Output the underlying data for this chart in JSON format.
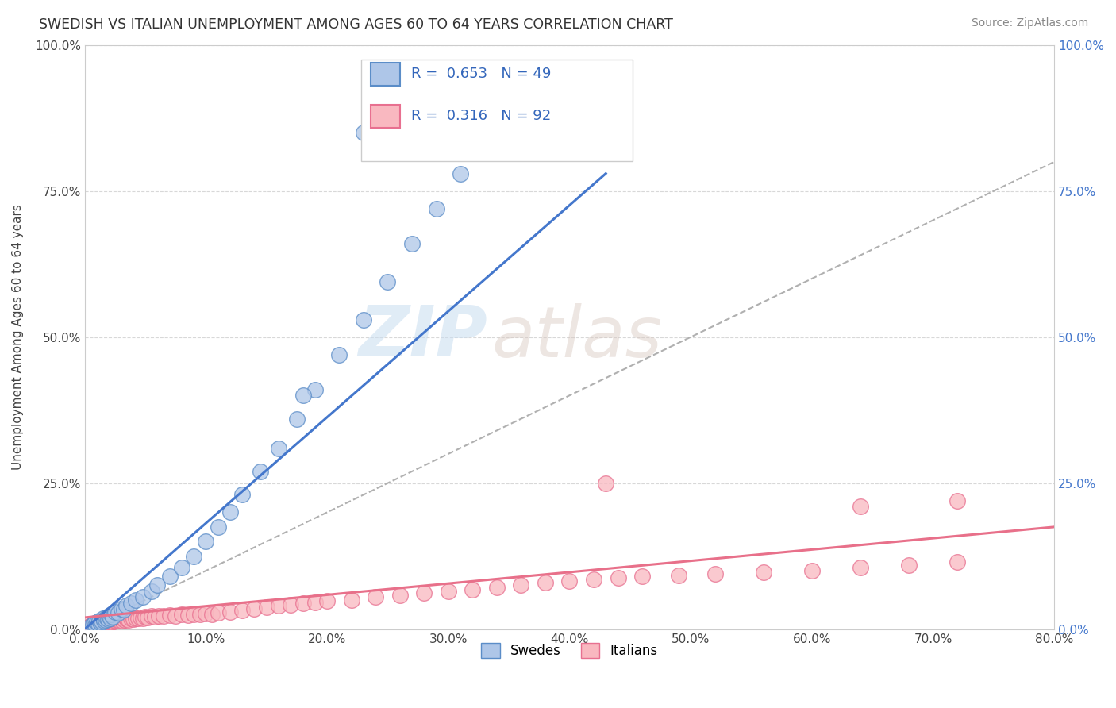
{
  "title": "SWEDISH VS ITALIAN UNEMPLOYMENT AMONG AGES 60 TO 64 YEARS CORRELATION CHART",
  "source": "Source: ZipAtlas.com",
  "ylabel": "Unemployment Among Ages 60 to 64 years",
  "xlim": [
    0.0,
    0.8
  ],
  "ylim": [
    0.0,
    1.0
  ],
  "xticks": [
    0.0,
    0.1,
    0.2,
    0.3,
    0.4,
    0.5,
    0.6,
    0.7,
    0.8
  ],
  "xticklabels": [
    "0.0%",
    "10.0%",
    "20.0%",
    "30.0%",
    "40.0%",
    "50.0%",
    "60.0%",
    "70.0%",
    "80.0%"
  ],
  "yticks": [
    0.0,
    0.25,
    0.5,
    0.75,
    1.0
  ],
  "yticklabels": [
    "0.0%",
    "25.0%",
    "50.0%",
    "75.0%",
    "100.0%"
  ],
  "swedes_color": "#aec6e8",
  "swedes_edge_color": "#5b8dc8",
  "italians_color": "#f9b8c0",
  "italians_edge_color": "#e87090",
  "swedes_R": 0.653,
  "swedes_N": 49,
  "italians_R": 0.316,
  "italians_N": 92,
  "legend_label_swedes": "Swedes",
  "legend_label_italians": "Italians",
  "watermark_zip": "ZIP",
  "watermark_atlas": "atlas",
  "regression_color_blue": "#4477cc",
  "regression_color_pink": "#e8708a",
  "grid_color": "#d8d8d8",
  "background_color": "#ffffff",
  "swedes_x": [
    0.005,
    0.007,
    0.008,
    0.009,
    0.01,
    0.011,
    0.012,
    0.013,
    0.014,
    0.015,
    0.016,
    0.017,
    0.018,
    0.019,
    0.02,
    0.021,
    0.022,
    0.023,
    0.025,
    0.028,
    0.03,
    0.032,
    0.034,
    0.038,
    0.042,
    0.048,
    0.055,
    0.06,
    0.07,
    0.08,
    0.09,
    0.1,
    0.11,
    0.12,
    0.13,
    0.145,
    0.16,
    0.175,
    0.19,
    0.21,
    0.23,
    0.25,
    0.27,
    0.29,
    0.31,
    0.33,
    0.35,
    0.23,
    0.18
  ],
  "swedes_y": [
    0.005,
    0.008,
    0.01,
    0.007,
    0.012,
    0.009,
    0.015,
    0.011,
    0.013,
    0.018,
    0.014,
    0.016,
    0.02,
    0.017,
    0.022,
    0.019,
    0.025,
    0.021,
    0.03,
    0.028,
    0.035,
    0.033,
    0.04,
    0.045,
    0.05,
    0.055,
    0.065,
    0.075,
    0.09,
    0.105,
    0.125,
    0.15,
    0.175,
    0.2,
    0.23,
    0.27,
    0.31,
    0.36,
    0.41,
    0.47,
    0.53,
    0.595,
    0.66,
    0.72,
    0.78,
    0.83,
    0.875,
    0.85,
    0.4
  ],
  "italians_x": [
    0.004,
    0.005,
    0.006,
    0.007,
    0.008,
    0.008,
    0.009,
    0.01,
    0.01,
    0.011,
    0.012,
    0.012,
    0.013,
    0.014,
    0.015,
    0.015,
    0.016,
    0.017,
    0.018,
    0.018,
    0.019,
    0.02,
    0.02,
    0.021,
    0.022,
    0.023,
    0.024,
    0.025,
    0.026,
    0.027,
    0.028,
    0.029,
    0.03,
    0.031,
    0.032,
    0.033,
    0.034,
    0.035,
    0.036,
    0.038,
    0.04,
    0.042,
    0.044,
    0.046,
    0.048,
    0.05,
    0.052,
    0.055,
    0.058,
    0.061,
    0.065,
    0.07,
    0.075,
    0.08,
    0.085,
    0.09,
    0.095,
    0.1,
    0.105,
    0.11,
    0.12,
    0.13,
    0.14,
    0.15,
    0.16,
    0.17,
    0.18,
    0.19,
    0.2,
    0.22,
    0.24,
    0.26,
    0.28,
    0.3,
    0.32,
    0.34,
    0.36,
    0.38,
    0.4,
    0.42,
    0.44,
    0.46,
    0.49,
    0.52,
    0.56,
    0.6,
    0.64,
    0.68,
    0.72,
    0.43,
    0.64,
    0.72
  ],
  "italians_y": [
    0.005,
    0.006,
    0.007,
    0.008,
    0.005,
    0.009,
    0.007,
    0.01,
    0.006,
    0.008,
    0.009,
    0.011,
    0.008,
    0.01,
    0.009,
    0.012,
    0.01,
    0.011,
    0.01,
    0.013,
    0.011,
    0.012,
    0.014,
    0.013,
    0.012,
    0.014,
    0.013,
    0.015,
    0.014,
    0.016,
    0.015,
    0.014,
    0.016,
    0.015,
    0.017,
    0.016,
    0.018,
    0.017,
    0.016,
    0.018,
    0.017,
    0.019,
    0.018,
    0.02,
    0.019,
    0.021,
    0.02,
    0.022,
    0.021,
    0.023,
    0.022,
    0.024,
    0.023,
    0.025,
    0.024,
    0.026,
    0.025,
    0.027,
    0.026,
    0.028,
    0.03,
    0.032,
    0.035,
    0.038,
    0.04,
    0.042,
    0.044,
    0.046,
    0.048,
    0.05,
    0.055,
    0.058,
    0.062,
    0.065,
    0.068,
    0.072,
    0.075,
    0.08,
    0.082,
    0.085,
    0.088,
    0.09,
    0.092,
    0.095,
    0.098,
    0.1,
    0.105,
    0.11,
    0.115,
    0.25,
    0.21,
    0.22
  ],
  "swede_line_x": [
    0.0,
    0.43
  ],
  "swede_line_y": [
    0.0,
    0.78
  ],
  "italian_line_x": [
    0.0,
    0.8
  ],
  "italian_line_y": [
    0.02,
    0.175
  ]
}
